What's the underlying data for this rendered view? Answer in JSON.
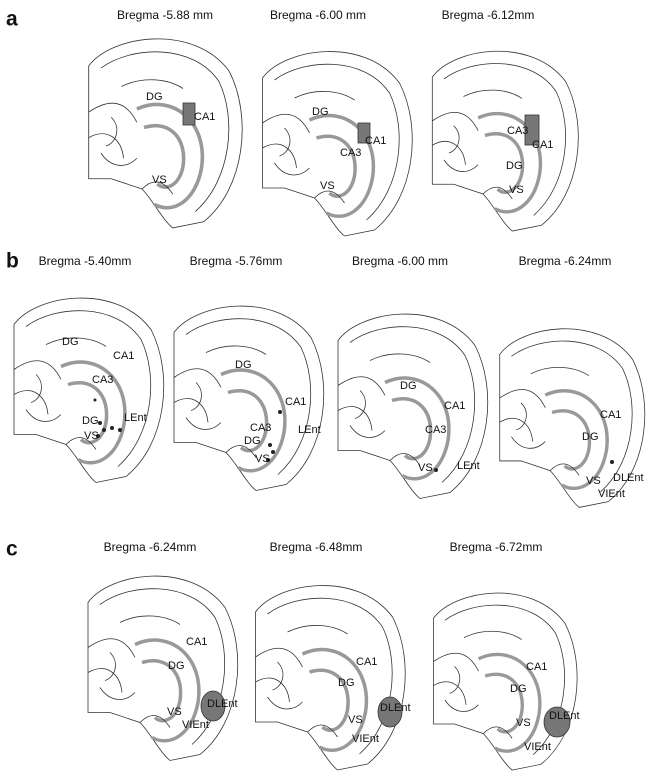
{
  "panels": [
    {
      "label": "a",
      "sections": [
        {
          "title": "Bregma -5.88 mm",
          "regions": [
            "DG",
            "CA1",
            "VS"
          ]
        },
        {
          "title": "Bregma -6.00 mm",
          "regions": [
            "DG",
            "CA1",
            "CA3",
            "VS"
          ]
        },
        {
          "title": "Bregma -6.12mm",
          "regions": [
            "CA3",
            "CA1",
            "DG",
            "VS"
          ]
        }
      ]
    },
    {
      "label": "b",
      "sections": [
        {
          "title": "Bregma -5.40mm",
          "regions": [
            "DG",
            "CA1",
            "CA3",
            "LEnt",
            "DG",
            "VS"
          ]
        },
        {
          "title": "Bregma -5.76mm",
          "regions": [
            "DG",
            "CA1",
            "CA3",
            "DG",
            "LEnt",
            "VS"
          ]
        },
        {
          "title": "Bregma -6.00 mm",
          "regions": [
            "DG",
            "CA1",
            "CA3",
            "VS",
            "LEnt"
          ]
        },
        {
          "title": "Bregma -6.24mm",
          "regions": [
            "CA1",
            "DG",
            "DLEnt",
            "VS",
            "VIEnt"
          ]
        }
      ]
    },
    {
      "label": "c",
      "sections": [
        {
          "title": "Bregma -6.24mm",
          "regions": [
            "CA1",
            "DG",
            "VS",
            "DLEnt",
            "VIEnt"
          ]
        },
        {
          "title": "Bregma -6.48mm",
          "regions": [
            "CA1",
            "DG",
            "DLEnt",
            "VS",
            "VIEnt"
          ]
        },
        {
          "title": "Bregma -6.72mm",
          "regions": [
            "CA1",
            "DG",
            "DLEnt",
            "VS",
            "VIEnt"
          ]
        }
      ]
    }
  ]
}
